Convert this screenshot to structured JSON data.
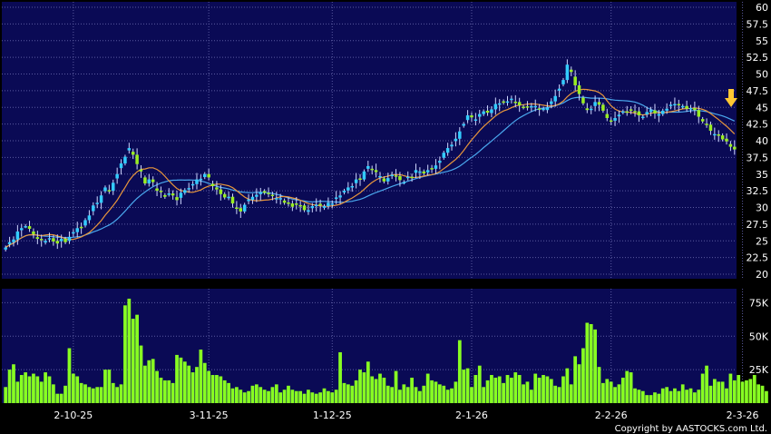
{
  "chart_data": [
    {
      "type": "candlestick",
      "panel": "price",
      "ylim": [
        20,
        60
      ],
      "y_ticks": [
        "20",
        "22.5",
        "25",
        "27.5",
        "30",
        "32.5",
        "35",
        "37.5",
        "40",
        "42.5",
        "45",
        "47.5",
        "50",
        "52.5",
        "55",
        "57.5",
        "60"
      ],
      "x_ticks": [
        "2-10-25",
        "3-11-25",
        "1-12-25",
        "2-1-26",
        "2-2-26",
        "2-3-26"
      ],
      "x_tick_index": [
        17,
        51,
        82,
        117,
        152,
        185
      ],
      "grid": true,
      "colors": {
        "background": "#0a0a55",
        "grid": "#5a5aa0",
        "up": "#33ccff",
        "down": "#99ee22",
        "ma_short": "#e8963c",
        "ma_long": "#4aa8ee",
        "arrow": "#ffc833"
      },
      "series_close": [
        24.0,
        24.8,
        25.2,
        26.4,
        26.9,
        27.2,
        26.8,
        26.0,
        25.3,
        25.1,
        25.0,
        25.4,
        24.9,
        24.6,
        25.3,
        24.8,
        25.6,
        26.3,
        26.9,
        27.0,
        28.1,
        28.8,
        30.3,
        30.7,
        31.8,
        33.0,
        32.5,
        33.7,
        35.0,
        36.6,
        37.6,
        38.9,
        37.9,
        36.5,
        35.4,
        33.6,
        34.2,
        33.8,
        32.5,
        32.4,
        31.6,
        32.1,
        31.8,
        31.1,
        32.2,
        32.6,
        32.9,
        33.5,
        34.2,
        34.3,
        35.0,
        34.5,
        33.2,
        32.7,
        32.0,
        31.5,
        31.6,
        30.6,
        29.8,
        29.4,
        30.4,
        31.2,
        31.6,
        31.9,
        32.3,
        32.2,
        32.0,
        31.7,
        31.4,
        31.4,
        30.7,
        30.6,
        30.1,
        30.5,
        30.3,
        29.6,
        29.6,
        30.2,
        30.4,
        30.3,
        30.2,
        30.7,
        30.6,
        31.5,
        31.8,
        32.5,
        33.0,
        33.2,
        34.2,
        34.2,
        35.4,
        36.2,
        35.6,
        35.3,
        34.7,
        33.9,
        34.4,
        34.9,
        34.7,
        34.1,
        33.8,
        34.6,
        34.5,
        35.6,
        35.4,
        35.1,
        35.6,
        35.8,
        36.3,
        37.0,
        38.2,
        38.9,
        39.4,
        40.3,
        41.4,
        42.5,
        43.8,
        43.5,
        43.2,
        44.0,
        44.4,
        44.2,
        44.7,
        45.5,
        45.6,
        45.7,
        45.9,
        46.3,
        45.8,
        45.3,
        45.0,
        45.0,
        45.2,
        45.2,
        44.7,
        44.8,
        45.0,
        45.9,
        46.7,
        47.8,
        49.1,
        51.4,
        50.3,
        48.3,
        47.0,
        45.6,
        44.6,
        44.8,
        45.8,
        45.4,
        44.5,
        43.4,
        43.0,
        43.4,
        43.9,
        44.4,
        44.2,
        44.6,
        44.4,
        43.8,
        43.6,
        44.3,
        44.6,
        44.1,
        44.0,
        44.5,
        44.8,
        45.4,
        45.5,
        45.3,
        45.2,
        44.8,
        44.9,
        44.6,
        43.6,
        42.9,
        42.4,
        41.5,
        41.0,
        40.8,
        40.2,
        39.9,
        39.1,
        38.7
      ],
      "ma_short_start": [
        23.0,
        27.0,
        29.0,
        33.5,
        32.5,
        33.5,
        30.5,
        32.0,
        30.3,
        31.5,
        34.5,
        38.0,
        41.5,
        44.0,
        45.8,
        47.0,
        46.0,
        45.5,
        44.0,
        44.5,
        45.0,
        44.5
      ],
      "ma_long_start": [
        21.5,
        24.0,
        26.0,
        29.5,
        31.5,
        32.0,
        31.5,
        31.2,
        30.5,
        32.0,
        33.5,
        36.5,
        40.0,
        43.5,
        46.0,
        46.5,
        45.5,
        45.0,
        44.5,
        44.8,
        44.6,
        44.3
      ]
    },
    {
      "type": "bar",
      "panel": "volume",
      "ylim": [
        0,
        80000
      ],
      "y_ticks": [
        "25K",
        "50K",
        "75K"
      ],
      "y_tick_values": [
        25000,
        50000,
        75000
      ],
      "values": [
        12000,
        25000,
        29000,
        16000,
        21000,
        23000,
        20000,
        22000,
        20000,
        16000,
        23000,
        20000,
        14000,
        7000,
        7000,
        13000,
        41000,
        22000,
        20000,
        15000,
        14000,
        12000,
        11000,
        12000,
        12000,
        25000,
        25000,
        15000,
        12000,
        14000,
        73000,
        78000,
        63000,
        66000,
        43000,
        28000,
        32000,
        33000,
        24000,
        19000,
        17000,
        17000,
        15000,
        36000,
        34000,
        31000,
        28000,
        23000,
        27000,
        40000,
        30000,
        24000,
        21000,
        21000,
        20000,
        17000,
        15000,
        11000,
        12000,
        10000,
        8000,
        9000,
        13000,
        14000,
        12000,
        10000,
        9000,
        12000,
        14000,
        8000,
        10000,
        13000,
        10000,
        9000,
        9000,
        7000,
        10000,
        8000,
        7000,
        8000,
        11000,
        9000,
        8000,
        10000,
        38000,
        15000,
        14000,
        13000,
        17000,
        25000,
        23000,
        31000,
        20000,
        18000,
        22000,
        19000,
        13000,
        12000,
        24000,
        10000,
        14000,
        12000,
        19000,
        12000,
        9000,
        13000,
        22000,
        17000,
        16000,
        14000,
        13000,
        10000,
        11000,
        16000,
        47000,
        25000,
        26000,
        12000,
        21000,
        28000,
        12000,
        17000,
        21000,
        19000,
        20000,
        15000,
        21000,
        19000,
        23000,
        21000,
        14000,
        16000,
        10000,
        22000,
        19000,
        21000,
        20000,
        18000,
        13000,
        12000,
        20000,
        26000,
        14000,
        35000,
        29000,
        41000,
        60000,
        59000,
        55000,
        27000,
        15000,
        18000,
        16000,
        12000,
        14000,
        19000,
        24000,
        23000,
        11000,
        10000,
        9000,
        6000,
        6000,
        8000,
        7000,
        11000,
        12000,
        9000,
        11000,
        9000,
        14000,
        10000,
        11000,
        8000,
        10000,
        22000,
        28000,
        13000,
        18000,
        16000,
        16000,
        11000,
        22000,
        17000,
        21000,
        16000,
        17000,
        18000,
        21000,
        14000,
        13000,
        9000
      ],
      "grid": true,
      "colors": {
        "background": "#0a0a55",
        "grid": "#5a5aa0",
        "bar": "#88ff22"
      }
    }
  ],
  "footer": {
    "copyright": "Copyright by AASTOCKS.com Ltd."
  }
}
